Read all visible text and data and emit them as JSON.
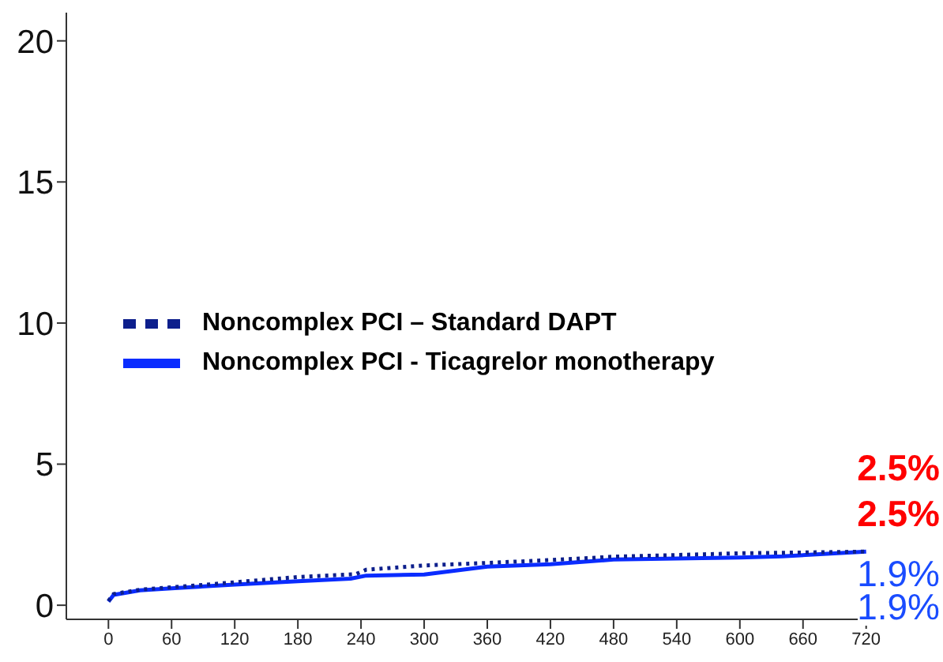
{
  "chart_data": {
    "type": "line",
    "xlim": [
      -40,
      760
    ],
    "xticks": [
      0,
      60,
      120,
      180,
      240,
      300,
      360,
      420,
      480,
      540,
      600,
      660,
      720
    ],
    "ylim": [
      -0.5,
      21
    ],
    "yticks": [
      0,
      5,
      10,
      15,
      20
    ],
    "legend": "left",
    "series": [
      {
        "name": "Noncomplex PCI – Standard DAPT",
        "color": "#0d1f8c",
        "line_style": "dotted",
        "x": [
          0,
          5,
          30,
          90,
          180,
          235,
          245,
          300,
          360,
          420,
          480,
          540,
          600,
          660,
          720
        ],
        "values": [
          0.15,
          0.4,
          0.55,
          0.72,
          1.0,
          1.1,
          1.26,
          1.41,
          1.5,
          1.6,
          1.72,
          1.78,
          1.84,
          1.87,
          1.9
        ]
      },
      {
        "name": "Noncomplex PCI - Ticagrelor monotherapy",
        "color": "#0a2cff",
        "line_style": "solid",
        "x": [
          0,
          5,
          30,
          60,
          120,
          180,
          230,
          245,
          300,
          360,
          420,
          480,
          600,
          640,
          720
        ],
        "values": [
          0.13,
          0.37,
          0.53,
          0.6,
          0.73,
          0.85,
          0.94,
          1.05,
          1.09,
          1.37,
          1.45,
          1.62,
          1.69,
          1.73,
          1.9
        ]
      }
    ],
    "annotations": [
      "2.5%",
      "2.5%",
      "1.9%",
      "1.9%"
    ]
  }
}
